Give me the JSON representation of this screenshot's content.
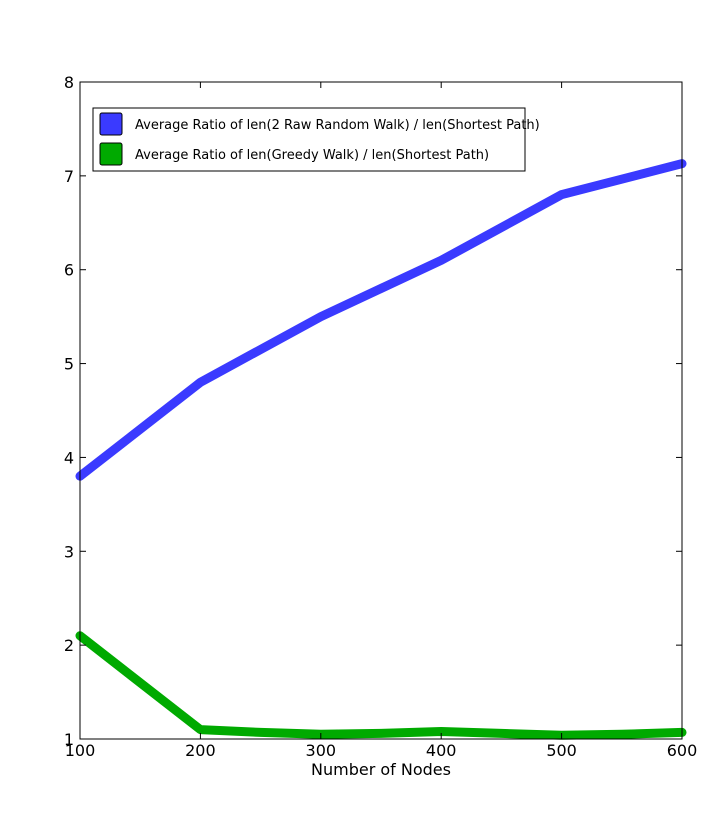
{
  "chart_data": {
    "type": "line",
    "title": "",
    "xlabel": "Number of Nodes",
    "ylabel": "",
    "xlim": [
      100,
      600
    ],
    "ylim": [
      1,
      8
    ],
    "xticks": [
      "100",
      "200",
      "300",
      "400",
      "500",
      "600"
    ],
    "yticks": [
      "1",
      "2",
      "3",
      "4",
      "5",
      "6",
      "7",
      "8"
    ],
    "grid": false,
    "legend_position": "top-left",
    "series": [
      {
        "name": "Average Ratio of len(2 Raw Random Walk) / len(Shortest Path)",
        "color": "#3a3aff",
        "x": [
          100,
          200,
          300,
          400,
          500,
          600
        ],
        "y": [
          3.8,
          4.8,
          5.5,
          6.1,
          6.8,
          7.13
        ]
      },
      {
        "name": "Average Ratio of len(Greedy Walk) / len(Shortest Path)",
        "color": "#00aa00",
        "x": [
          100,
          200,
          250,
          300,
          350,
          400,
          450,
          500,
          550,
          600
        ],
        "y": [
          2.1,
          1.1,
          1.07,
          1.05,
          1.06,
          1.08,
          1.06,
          1.04,
          1.05,
          1.07
        ]
      }
    ]
  }
}
